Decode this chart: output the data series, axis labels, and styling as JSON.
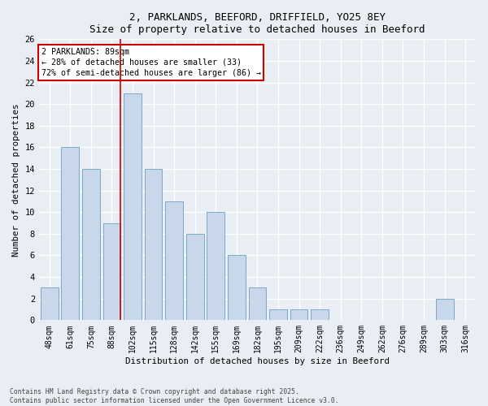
{
  "title_line1": "2, PARKLANDS, BEEFORD, DRIFFIELD, YO25 8EY",
  "title_line2": "Size of property relative to detached houses in Beeford",
  "xlabel": "Distribution of detached houses by size in Beeford",
  "ylabel": "Number of detached properties",
  "bar_labels": [
    "48sqm",
    "61sqm",
    "75sqm",
    "88sqm",
    "102sqm",
    "115sqm",
    "128sqm",
    "142sqm",
    "155sqm",
    "169sqm",
    "182sqm",
    "195sqm",
    "209sqm",
    "222sqm",
    "236sqm",
    "249sqm",
    "262sqm",
    "276sqm",
    "289sqm",
    "303sqm",
    "316sqm"
  ],
  "bar_values": [
    3,
    16,
    14,
    9,
    21,
    14,
    11,
    8,
    10,
    6,
    3,
    1,
    1,
    1,
    0,
    0,
    0,
    0,
    0,
    2,
    0
  ],
  "bar_color": "#c8d8ea",
  "bar_edge_color": "#7aaac8",
  "subject_line_label": "2 PARKLANDS: 89sqm",
  "annotation_line1": "← 28% of detached houses are smaller (33)",
  "annotation_line2": "72% of semi-detached houses are larger (86) →",
  "annotation_box_color": "#ffffff",
  "annotation_box_edge": "#cc0000",
  "subject_line_color": "#cc0000",
  "ylim": [
    0,
    26
  ],
  "yticks": [
    0,
    2,
    4,
    6,
    8,
    10,
    12,
    14,
    16,
    18,
    20,
    22,
    24,
    26
  ],
  "footer_line1": "Contains HM Land Registry data © Crown copyright and database right 2025.",
  "footer_line2": "Contains public sector information licensed under the Open Government Licence v3.0.",
  "bg_color": "#e8eef4",
  "grid_color": "#ffffff"
}
